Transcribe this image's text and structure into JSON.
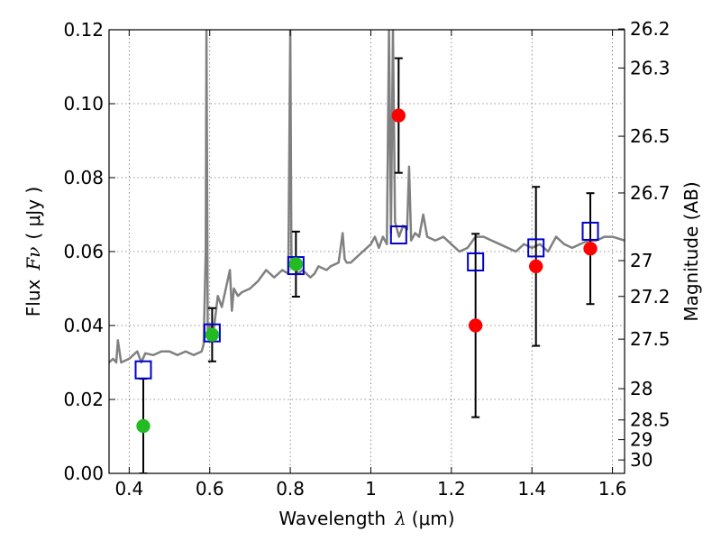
{
  "chart_data": {
    "type": "scatter",
    "xlabel": "Wavelength",
    "xlabel_symbol": "λ",
    "xlabel_unit": "(μm)",
    "ylabel": "Flux",
    "ylabel_symbol": "Fν",
    "ylabel_unit": "( μJy )",
    "y2label": "Magnitude (AB)",
    "xlim": [
      0.35,
      1.63
    ],
    "ylim": [
      0.0,
      0.12
    ],
    "grid": true,
    "x_ticks": [
      0.4,
      0.6,
      0.8,
      1.0,
      1.2,
      1.4,
      1.6
    ],
    "x_tick_labels": [
      "0.4",
      "0.6",
      "0.8",
      "1",
      "1.2",
      "1.4",
      "1.6"
    ],
    "y_ticks": [
      0.0,
      0.02,
      0.04,
      0.06,
      0.08,
      0.1,
      0.12
    ],
    "y_tick_labels": [
      "0.00",
      "0.02",
      "0.04",
      "0.06",
      "0.08",
      "0.10",
      "0.12"
    ],
    "mag_ticks": [
      26.2,
      26.3,
      26.5,
      26.7,
      27,
      27.2,
      27.5,
      28,
      28.5,
      29,
      30
    ],
    "mag_tick_labels": [
      "26.2",
      "26.3",
      "26.5",
      "26.7",
      "27",
      "27.2",
      "27.5",
      "28",
      "28.5",
      "29",
      "30"
    ],
    "series": [
      {
        "name": "green detections",
        "color": "#22bb22",
        "marker": "circle",
        "points": [
          {
            "x": 0.435,
            "y": 0.0128,
            "err_low": 0.0128,
            "err_high": 0.0128
          },
          {
            "x": 0.606,
            "y": 0.0375,
            "err_low": 0.0072,
            "err_high": 0.0072
          },
          {
            "x": 0.814,
            "y": 0.0566,
            "err_low": 0.0088,
            "err_high": 0.0088
          }
        ]
      },
      {
        "name": "red detections",
        "color": "#ff0000",
        "marker": "circle",
        "points": [
          {
            "x": 1.069,
            "y": 0.0968,
            "err_low": 0.0155,
            "err_high": 0.0155
          },
          {
            "x": 1.26,
            "y": 0.04,
            "err_low": 0.0248,
            "err_high": 0.0248
          },
          {
            "x": 1.41,
            "y": 0.056,
            "err_low": 0.0215,
            "err_high": 0.0215
          },
          {
            "x": 1.545,
            "y": 0.0608,
            "err_low": 0.015,
            "err_high": 0.015
          }
        ]
      },
      {
        "name": "model photometry",
        "color": "#0000cc",
        "marker": "open-square",
        "points": [
          {
            "x": 0.435,
            "y": 0.028
          },
          {
            "x": 0.606,
            "y": 0.038
          },
          {
            "x": 0.814,
            "y": 0.0562
          },
          {
            "x": 1.069,
            "y": 0.0645
          },
          {
            "x": 1.26,
            "y": 0.0572
          },
          {
            "x": 1.41,
            "y": 0.061
          },
          {
            "x": 1.545,
            "y": 0.0655
          }
        ]
      },
      {
        "name": "model spectrum",
        "color": "#808080",
        "marker": "line",
        "x": [
          0.35,
          0.36,
          0.368,
          0.372,
          0.38,
          0.4,
          0.42,
          0.43,
          0.44,
          0.46,
          0.48,
          0.5,
          0.52,
          0.54,
          0.56,
          0.58,
          0.585,
          0.59,
          0.592,
          0.595,
          0.6,
          0.61,
          0.62,
          0.63,
          0.64,
          0.65,
          0.655,
          0.66,
          0.67,
          0.68,
          0.7,
          0.72,
          0.74,
          0.76,
          0.78,
          0.795,
          0.8,
          0.803,
          0.806,
          0.81,
          0.82,
          0.83,
          0.84,
          0.85,
          0.86,
          0.87,
          0.88,
          0.89,
          0.9,
          0.92,
          0.93,
          0.935,
          0.94,
          0.95,
          0.98,
          1.0,
          1.01,
          1.02,
          1.03,
          1.04,
          1.045,
          1.05,
          1.055,
          1.06,
          1.07,
          1.08,
          1.09,
          1.095,
          1.1,
          1.11,
          1.12,
          1.13,
          1.14,
          1.16,
          1.18,
          1.2,
          1.22,
          1.24,
          1.26,
          1.28,
          1.3,
          1.32,
          1.34,
          1.36,
          1.38,
          1.4,
          1.42,
          1.44,
          1.46,
          1.48,
          1.5,
          1.52,
          1.54,
          1.56,
          1.58,
          1.6,
          1.63
        ],
        "y": [
          0.03,
          0.031,
          0.03,
          0.036,
          0.03,
          0.031,
          0.033,
          0.03,
          0.0325,
          0.032,
          0.033,
          0.033,
          0.032,
          0.033,
          0.032,
          0.033,
          0.035,
          0.06,
          0.12,
          0.038,
          0.04,
          0.039,
          0.048,
          0.045,
          0.05,
          0.055,
          0.044,
          0.05,
          0.048,
          0.049,
          0.05,
          0.052,
          0.055,
          0.053,
          0.055,
          0.054,
          0.12,
          0.056,
          0.058,
          0.056,
          0.054,
          0.055,
          0.054,
          0.053,
          0.054,
          0.056,
          0.0555,
          0.055,
          0.056,
          0.057,
          0.065,
          0.058,
          0.057,
          0.057,
          0.06,
          0.062,
          0.064,
          0.061,
          0.064,
          0.062,
          0.12,
          0.065,
          0.12,
          0.068,
          0.064,
          0.067,
          0.066,
          0.083,
          0.063,
          0.065,
          0.064,
          0.07,
          0.064,
          0.063,
          0.064,
          0.062,
          0.06,
          0.061,
          0.064,
          0.064,
          0.063,
          0.062,
          0.061,
          0.06,
          0.062,
          0.061,
          0.062,
          0.06,
          0.064,
          0.062,
          0.061,
          0.062,
          0.063,
          0.063,
          0.064,
          0.064,
          0.063
        ]
      }
    ]
  }
}
